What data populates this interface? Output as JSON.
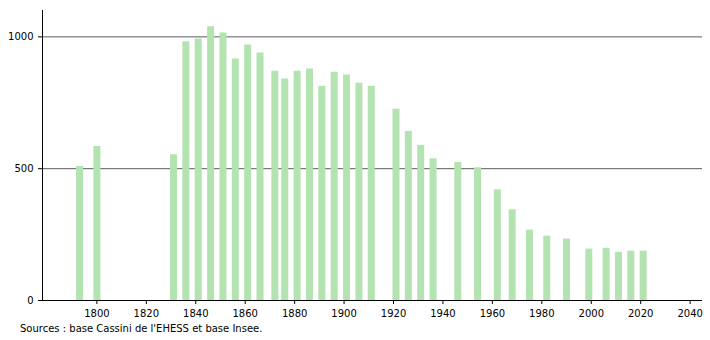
{
  "chart_data": {
    "type": "bar",
    "caption": "Sources : base Cassini de l'EHESS et base Insee.",
    "x": [
      1793,
      1800,
      1831,
      1836,
      1841,
      1846,
      1851,
      1856,
      1861,
      1866,
      1872,
      1876,
      1881,
      1886,
      1891,
      1896,
      1901,
      1906,
      1911,
      1921,
      1926,
      1931,
      1936,
      1946,
      1954,
      1962,
      1968,
      1975,
      1982,
      1990,
      1999,
      2006,
      2011,
      2016,
      2021
    ],
    "values": [
      508,
      584,
      553,
      981,
      992,
      1038,
      1015,
      916,
      969,
      939,
      870,
      840,
      870,
      878,
      813,
      866,
      855,
      824,
      813,
      725,
      641,
      588,
      538,
      523,
      504,
      420,
      344,
      267,
      244,
      233,
      195,
      198,
      183,
      187,
      187
    ],
    "color": "#b3e3b0",
    "xlim": [
      1778,
      2045
    ],
    "xticks": [
      1800,
      1820,
      1840,
      1860,
      1880,
      1900,
      1920,
      1940,
      1960,
      1980,
      2000,
      2020,
      2040
    ],
    "ylim": [
      0,
      1100
    ],
    "yticks": [
      0,
      500,
      1000
    ],
    "grid": true
  }
}
